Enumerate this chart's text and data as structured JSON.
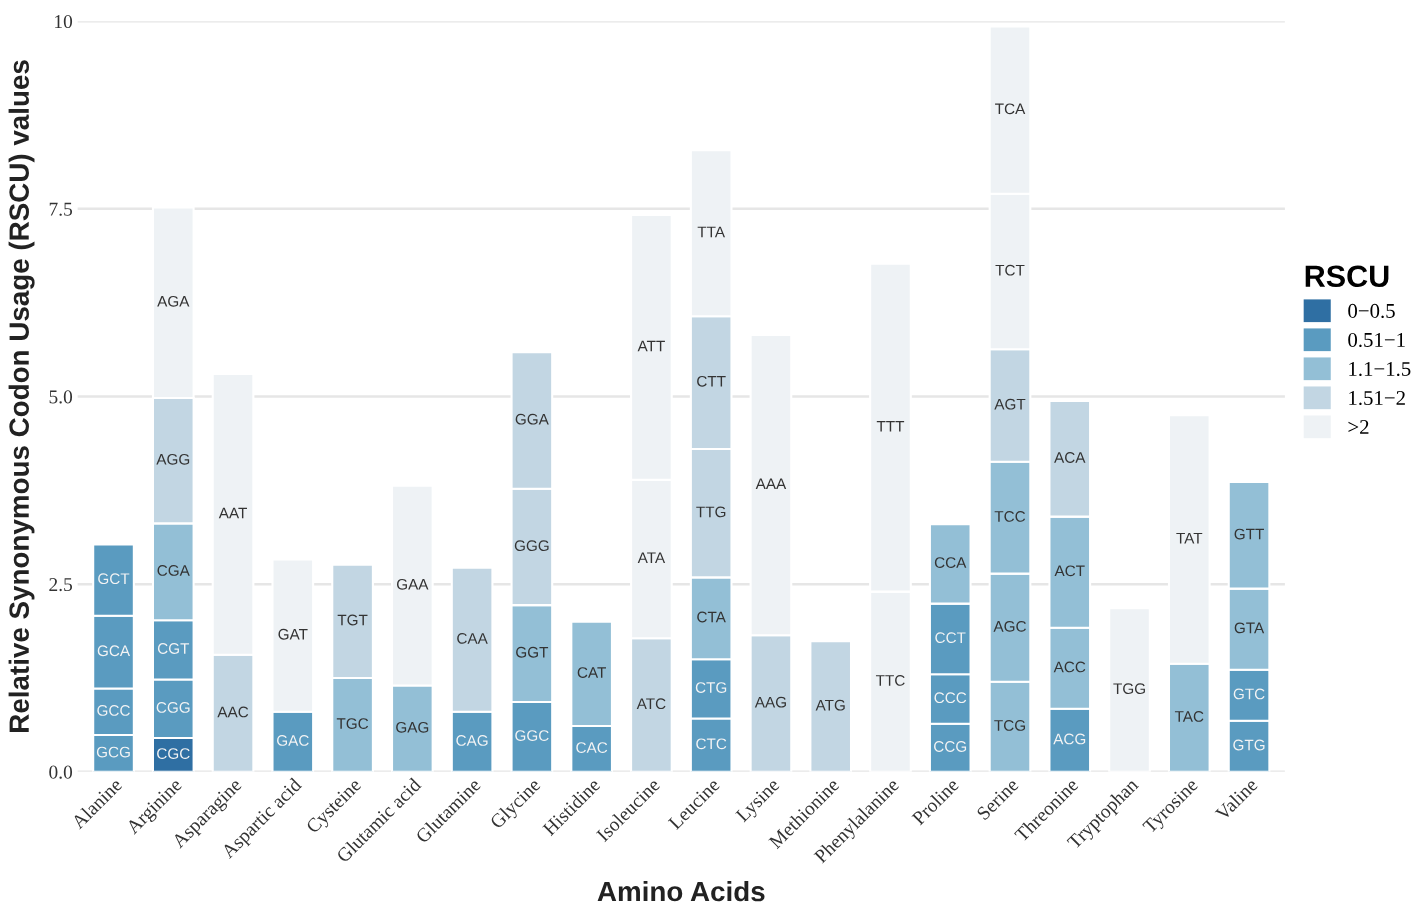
{
  "chart_data": {
    "type": "bar",
    "stacked": true,
    "xlabel": "Amino Acids",
    "ylabel": "Relative Synonymous Codon Usage (RSCU) values",
    "categories": [
      "Alanine",
      "Arginine",
      "Asparagine",
      "Aspartic acid",
      "Cysteine",
      "Glutamic acid",
      "Glutamine",
      "Glycine",
      "Histidine",
      "Isoleucine",
      "Leucine",
      "Lysine",
      "Methionine",
      "Phenylalanine",
      "Proline",
      "Serine",
      "Threonine",
      "Tryptophan",
      "Tyrosine",
      "Valine"
    ],
    "ylim": [
      0,
      10
    ],
    "yticks": [
      {
        "value": 0,
        "label": "0.0"
      },
      2.5,
      {
        "value": 5,
        "label": "5.0"
      },
      7.5,
      10
    ],
    "grid": "y",
    "legend": "right",
    "legend_title": "RSCU",
    "series": [
      {
        "values": [
          0.49,
          0.45,
          1.56,
          0.8,
          1.25,
          1.15,
          0.8,
          0.93,
          0.61,
          1.78,
          0.71,
          1.82,
          1.74,
          2.4,
          0.64,
          1.2,
          0.84,
          2.18,
          1.44,
          0.68
        ],
        "colors": [
          "#5a9bc0",
          "#2f6fa3",
          "#c2d6e3",
          "#5a9bc0",
          "#93bfd6",
          "#93bfd6",
          "#5a9bc0",
          "#5a9bc0",
          "#5a9bc0",
          "#c2d6e3",
          "#5a9bc0",
          "#c2d6e3",
          "#c2d6e3",
          "#eef2f5",
          "#5a9bc0",
          "#93bfd6",
          "#5a9bc0",
          "#eef2f5",
          "#93bfd6",
          "#5a9bc0"
        ],
        "value_labels": [
          "GCG",
          "CGC",
          "AAC",
          "GAC",
          "TGC",
          "GAG",
          "CAG",
          "GGC",
          "CAC",
          "ATC",
          "CTC",
          "AAG",
          "ATG",
          "TTC",
          "CCG",
          "TCG",
          "ACG",
          "TGG",
          "TAC",
          "GTG"
        ]
      },
      {
        "values": [
          0.62,
          0.78,
          3.74,
          2.03,
          1.51,
          2.66,
          1.92,
          1.29,
          1.39,
          2.11,
          0.79,
          4.0,
          null,
          4.37,
          0.66,
          1.44,
          1.08,
          null,
          3.31,
          0.68
        ],
        "colors": [
          "#5a9bc0",
          "#5a9bc0",
          "#eef2f5",
          "#eef2f5",
          "#c2d6e3",
          "#eef2f5",
          "#c2d6e3",
          "#93bfd6",
          "#93bfd6",
          "#eef2f5",
          "#5a9bc0",
          "#eef2f5",
          null,
          "#eef2f5",
          "#5a9bc0",
          "#93bfd6",
          "#93bfd6",
          null,
          "#eef2f5",
          "#5a9bc0"
        ],
        "value_labels": [
          "GCC",
          "CGG",
          "AAT",
          "GAT",
          "TGT",
          "GAA",
          "CAA",
          "GGT",
          "CAT",
          "ATA",
          "CTG",
          "AAA",
          null,
          "TTT",
          "CCC",
          "AGC",
          "ACC",
          null,
          "TAT",
          "GTC"
        ]
      },
      {
        "values": [
          0.97,
          0.79,
          null,
          null,
          null,
          null,
          null,
          1.55,
          null,
          3.53,
          1.09,
          null,
          null,
          null,
          0.94,
          1.49,
          1.48,
          null,
          null,
          1.08
        ],
        "colors": [
          "#5a9bc0",
          "#5a9bc0",
          null,
          null,
          null,
          null,
          null,
          "#c2d6e3",
          null,
          "#eef2f5",
          "#93bfd6",
          null,
          null,
          null,
          "#5a9bc0",
          "#93bfd6",
          "#93bfd6",
          null,
          null,
          "#93bfd6"
        ],
        "value_labels": [
          "GCA",
          "CGT",
          null,
          null,
          null,
          null,
          null,
          "GGG",
          null,
          "ATT",
          "CTA",
          null,
          null,
          null,
          "CCT",
          "TCC",
          "ACT",
          null,
          null,
          "GTA"
        ]
      },
      {
        "values": [
          0.95,
          1.29,
          null,
          null,
          null,
          null,
          null,
          1.82,
          null,
          null,
          1.71,
          null,
          null,
          null,
          1.06,
          1.5,
          1.54,
          null,
          null,
          1.42
        ],
        "colors": [
          "#5a9bc0",
          "#93bfd6",
          null,
          null,
          null,
          null,
          null,
          "#c2d6e3",
          null,
          null,
          "#c2d6e3",
          null,
          null,
          null,
          "#93bfd6",
          "#c2d6e3",
          "#c2d6e3",
          null,
          null,
          "#93bfd6"
        ],
        "value_labels": [
          "GCT",
          "CGA",
          null,
          null,
          null,
          null,
          null,
          "GGA",
          null,
          null,
          "TTG",
          null,
          null,
          null,
          "CCA",
          "AGT",
          "ACA",
          null,
          null,
          "GTT"
        ]
      },
      {
        "values": [
          null,
          1.67,
          null,
          null,
          null,
          null,
          null,
          null,
          null,
          null,
          1.77,
          null,
          null,
          null,
          null,
          2.07,
          null,
          null,
          null,
          null
        ],
        "colors": [
          null,
          "#c2d6e3",
          null,
          null,
          null,
          null,
          null,
          null,
          null,
          null,
          "#c2d6e3",
          null,
          null,
          null,
          null,
          "#eef2f5",
          null,
          null,
          null,
          null
        ],
        "value_labels": [
          null,
          "AGG",
          null,
          null,
          null,
          null,
          null,
          null,
          null,
          null,
          "CTT",
          null,
          null,
          null,
          null,
          "TCT",
          null,
          null,
          null,
          null
        ]
      },
      {
        "values": [
          null,
          2.54,
          null,
          null,
          null,
          null,
          null,
          null,
          null,
          null,
          2.21,
          null,
          null,
          null,
          null,
          2.23,
          null,
          null,
          null,
          null
        ],
        "colors": [
          null,
          "#eef2f5",
          null,
          null,
          null,
          null,
          null,
          null,
          null,
          null,
          "#eef2f5",
          null,
          null,
          null,
          null,
          "#eef2f5",
          null,
          null,
          null,
          null
        ],
        "value_labels": [
          null,
          "AGA",
          null,
          null,
          null,
          null,
          null,
          null,
          null,
          null,
          "TTA",
          null,
          null,
          null,
          null,
          "TCA",
          null,
          null,
          null,
          null
        ]
      },
      {
        "name": "0−0.5",
        "color": "#2f6fa3",
        "values": [
          null,
          null,
          null,
          null,
          null,
          null,
          null,
          null,
          null,
          null,
          null,
          null,
          null,
          null,
          null,
          null,
          null,
          null,
          null,
          null
        ]
      },
      {
        "name": "0.51−1",
        "color": "#5a9bc0",
        "values": [
          null,
          null,
          null,
          null,
          null,
          null,
          null,
          null,
          null,
          null,
          null,
          null,
          null,
          null,
          null,
          null,
          null,
          null,
          null,
          null
        ]
      },
      {
        "name": "1.1−1.5",
        "color": "#93bfd6",
        "values": [
          null,
          null,
          null,
          null,
          null,
          null,
          null,
          null,
          null,
          null,
          null,
          null,
          null,
          null,
          null,
          null,
          null,
          null,
          null,
          null
        ]
      },
      {
        "name": "1.51−2",
        "color": "#c2d6e3",
        "values": [
          null,
          null,
          null,
          null,
          null,
          null,
          null,
          null,
          null,
          null,
          null,
          null,
          null,
          null,
          null,
          null,
          null,
          null,
          null,
          null
        ]
      },
      {
        "name": ">2",
        "color": "#eef2f5",
        "values": [
          null,
          null,
          null,
          null,
          null,
          null,
          null,
          null,
          null,
          null,
          null,
          null,
          null,
          null,
          null,
          null,
          null,
          null,
          null,
          null
        ]
      }
    ]
  }
}
